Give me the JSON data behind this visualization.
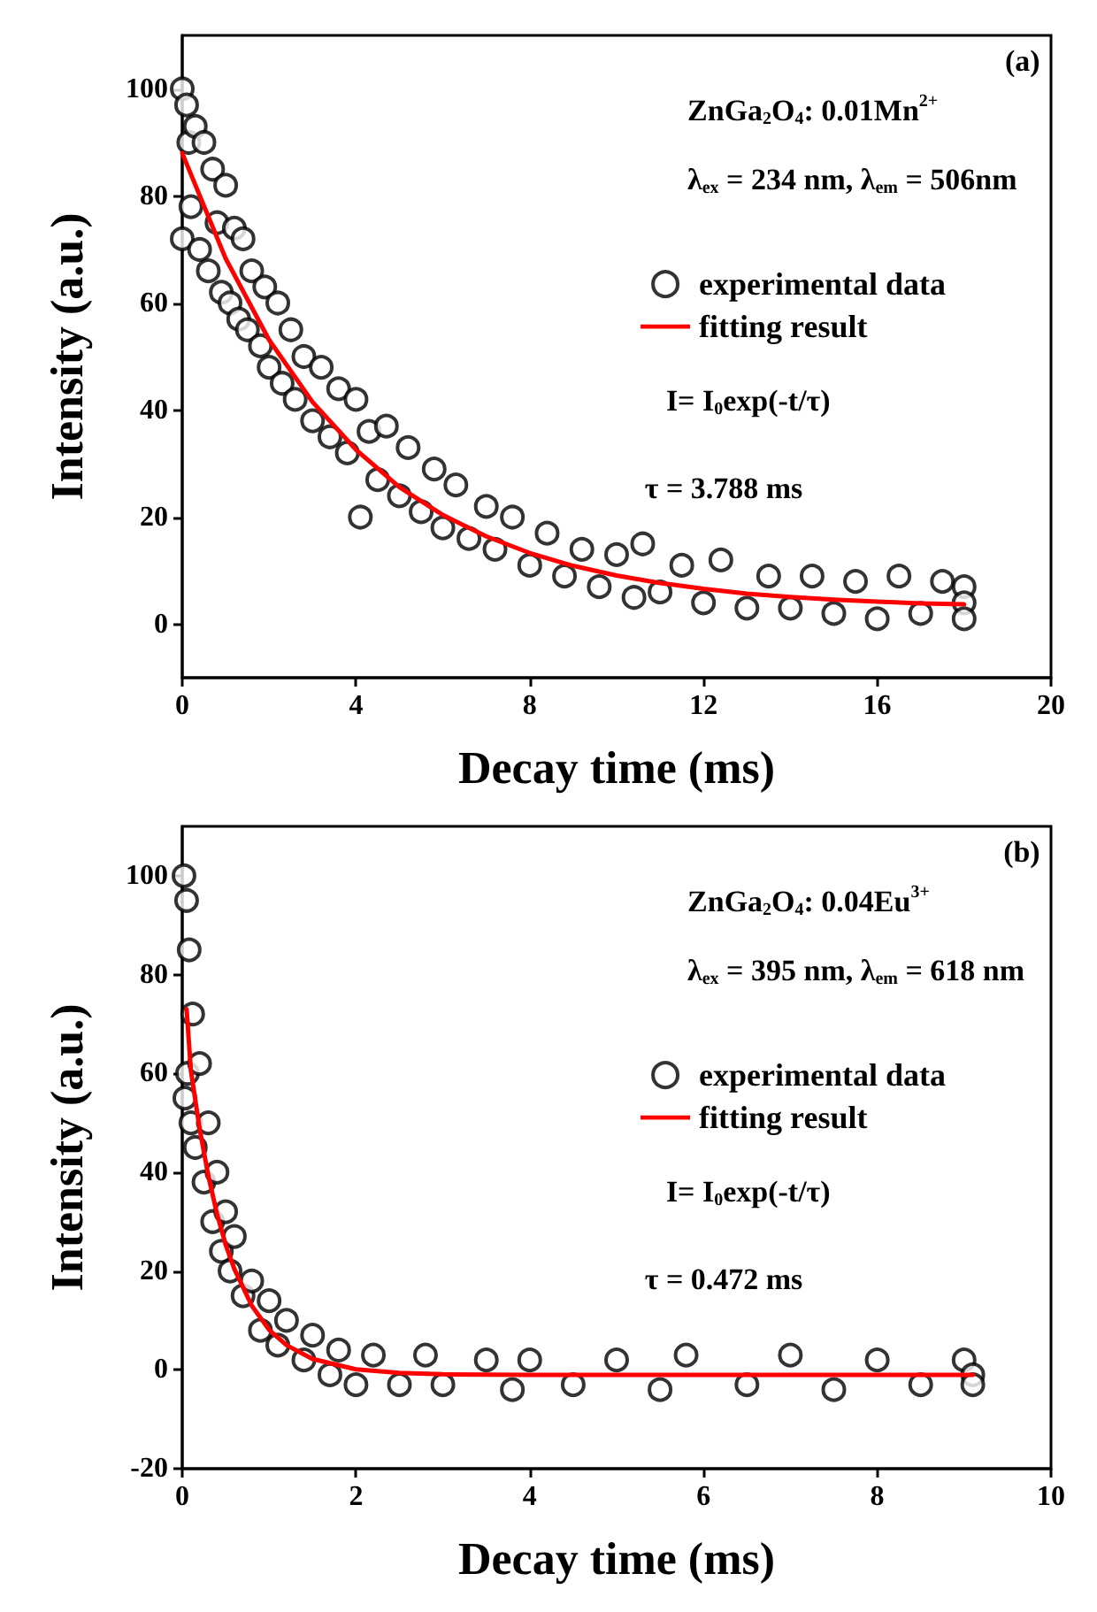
{
  "chart_data": [
    {
      "type": "scatter",
      "xlabel": "Decay time (ms)",
      "ylabel": "Intensity (a.u.)",
      "xlim": [
        0,
        20
      ],
      "ylim": [
        -10,
        110
      ],
      "xticks": [
        0,
        4,
        8,
        12,
        16,
        20
      ],
      "yticks": [
        0,
        20,
        40,
        60,
        80,
        100
      ],
      "grid": false,
      "legend": "right",
      "annotations": [
        "(a)",
        "ZnGa$_{2}$O$_{4}$: 0.01Mn$^{2+}$",
        "λ$_{ex}$ = 234 nm, λ$_{em}$ = 506nm",
        "I= I$_{0}$exp(-t/τ)",
        "τ = 3.788 ms"
      ],
      "series": [
        {
          "name": "experimental data",
          "color": "#000000",
          "marker": "circle",
          "x": [
            0,
            0,
            0.1,
            0.15,
            0.2,
            0.3,
            0.4,
            0.5,
            0.6,
            0.7,
            0.8,
            0.9,
            1,
            1.1,
            1.2,
            1.3,
            1.4,
            1.5,
            1.6,
            1.8,
            1.9,
            2,
            2.2,
            2.3,
            2.5,
            2.6,
            2.8,
            3,
            3.2,
            3.4,
            3.6,
            3.8,
            4,
            4.1,
            4.3,
            4.5,
            4.7,
            5,
            5.2,
            5.5,
            5.8,
            6,
            6.3,
            6.6,
            7,
            7.2,
            7.6,
            8,
            8.4,
            8.8,
            9.2,
            9.6,
            10,
            10.4,
            10.6,
            11,
            11.5,
            12,
            12.4,
            13,
            13.5,
            14,
            14.5,
            15,
            15.5,
            16,
            16.5,
            17,
            17.5,
            18,
            18,
            18
          ],
          "values": [
            100,
            72,
            97,
            90,
            78,
            93,
            70,
            90,
            66,
            85,
            75,
            62,
            82,
            60,
            74,
            57,
            72,
            55,
            66,
            52,
            63,
            48,
            60,
            45,
            55,
            42,
            50,
            38,
            48,
            35,
            44,
            32,
            42,
            20,
            36,
            27,
            37,
            24,
            33,
            21,
            29,
            18,
            26,
            16,
            22,
            14,
            20,
            11,
            17,
            9,
            14,
            7,
            13,
            5,
            15,
            6,
            11,
            4,
            12,
            3,
            9,
            3,
            9,
            2,
            8,
            1,
            9,
            2,
            8,
            7,
            4,
            1
          ]
        },
        {
          "name": "fitting result",
          "type": "line",
          "color": "#ff0000",
          "marker": "none",
          "line_style": "solid",
          "x": [
            0,
            1,
            2,
            3,
            4,
            5,
            6,
            7,
            8,
            9,
            10,
            11,
            12,
            13,
            14,
            15,
            16,
            17,
            18
          ],
          "values": [
            88,
            68.3,
            53.1,
            41.5,
            32.6,
            25.6,
            20.4,
            16.4,
            13.3,
            10.9,
            9.1,
            7.7,
            6.6,
            5.7,
            5.1,
            4.6,
            4.2,
            3.9,
            3.7
          ]
        }
      ]
    },
    {
      "type": "scatter",
      "xlabel": "Decay time (ms)",
      "ylabel": "Intensity (a.u.)",
      "xlim": [
        0,
        10
      ],
      "ylim": [
        -20,
        110
      ],
      "xticks": [
        0,
        2,
        4,
        6,
        8,
        10
      ],
      "yticks": [
        -20,
        0,
        20,
        40,
        60,
        80,
        100
      ],
      "grid": false,
      "legend": "right",
      "annotations": [
        "(b)",
        "ZnGa$_{2}$O$_{4}$: 0.04Eu$^{3+}$",
        "λ$_{ex}$ = 395 nm, λ$_{em}$ = 618 nm",
        "I= I$_{0}$exp(-t/τ)",
        "τ = 0.472 ms"
      ],
      "series": [
        {
          "name": "experimental data",
          "color": "#000000",
          "marker": "circle",
          "x": [
            0.02,
            0.03,
            0.05,
            0.06,
            0.08,
            0.1,
            0.12,
            0.15,
            0.2,
            0.25,
            0.3,
            0.35,
            0.4,
            0.45,
            0.5,
            0.55,
            0.6,
            0.7,
            0.8,
            0.9,
            1,
            1.1,
            1.2,
            1.4,
            1.5,
            1.7,
            1.8,
            2,
            2.2,
            2.5,
            2.8,
            3,
            3.5,
            3.8,
            4,
            4.5,
            5,
            5.5,
            5.8,
            6.5,
            7,
            7.5,
            8,
            8.5,
            9,
            9.1,
            9.1
          ],
          "values": [
            100,
            55,
            95,
            60,
            85,
            50,
            72,
            45,
            62,
            38,
            50,
            30,
            40,
            24,
            32,
            20,
            27,
            15,
            18,
            8,
            14,
            5,
            10,
            2,
            7,
            -1,
            4,
            -3,
            3,
            -3,
            3,
            -3,
            2,
            -4,
            2,
            -3,
            2,
            -4,
            3,
            -3,
            3,
            -4,
            2,
            -3,
            2,
            -1,
            -3
          ]
        },
        {
          "name": "fitting result",
          "type": "line",
          "color": "#ff0000",
          "marker": "none",
          "line_style": "solid",
          "x": [
            0.05,
            0.1,
            0.2,
            0.3,
            0.4,
            0.5,
            0.6,
            0.8,
            1,
            1.2,
            1.5,
            2,
            2.5,
            3,
            4,
            5,
            6,
            7,
            8,
            9.1
          ],
          "values": [
            73,
            60.5,
            48.8,
            39.3,
            31.6,
            25.3,
            20.4,
            13,
            8.1,
            5,
            2.2,
            0.1,
            -0.6,
            -0.9,
            -1,
            -1,
            -1,
            -1,
            -1,
            -1
          ]
        }
      ]
    }
  ]
}
